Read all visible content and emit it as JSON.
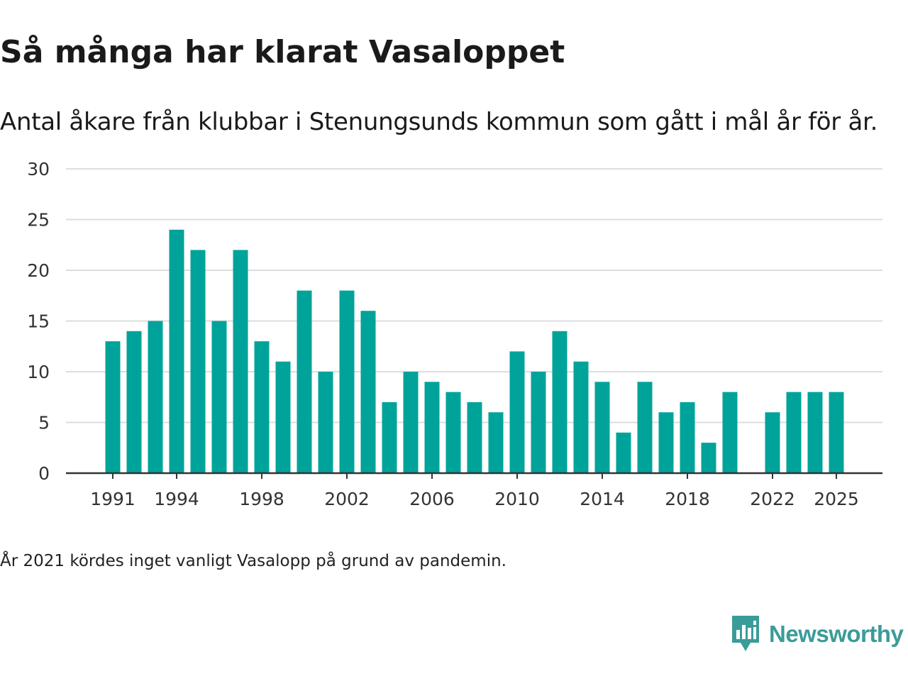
{
  "chart_data": {
    "type": "bar",
    "title": "Så många har klarat Vasaloppet",
    "subtitle": "Antal åkare från klubbar i Stenungsunds kommun som gått i mål år för år.",
    "categories": [
      1991,
      1992,
      1993,
      1994,
      1995,
      1996,
      1997,
      1998,
      1999,
      2000,
      2001,
      2002,
      2003,
      2004,
      2005,
      2006,
      2007,
      2008,
      2009,
      2010,
      2011,
      2012,
      2013,
      2014,
      2015,
      2016,
      2017,
      2018,
      2019,
      2020,
      2021,
      2022,
      2023,
      2024,
      2025
    ],
    "values": [
      13,
      14,
      15,
      24,
      22,
      15,
      22,
      13,
      11,
      18,
      10,
      18,
      16,
      7,
      10,
      9,
      8,
      7,
      6,
      12,
      10,
      14,
      11,
      9,
      4,
      9,
      6,
      7,
      3,
      8,
      null,
      6,
      8,
      8,
      8
    ],
    "x_tick_labels": [
      "1991",
      "1994",
      "1998",
      "2002",
      "2006",
      "2010",
      "2014",
      "2018",
      "2022",
      "2025"
    ],
    "y_ticks": [
      0,
      5,
      10,
      15,
      20,
      25,
      30
    ],
    "ylim": [
      0,
      30
    ],
    "xlabel": "",
    "ylabel": "",
    "grid": true,
    "bar_color": "#00a39a",
    "grid_color": "#dddddd",
    "axis_color": "#333333"
  },
  "note": "År 2021 kördes inget vanligt Vasalopp på grund av pandemin.",
  "brand": {
    "name": "Newsworthy",
    "color": "#3a9c98",
    "icon": "newsworthy-logo-icon"
  }
}
